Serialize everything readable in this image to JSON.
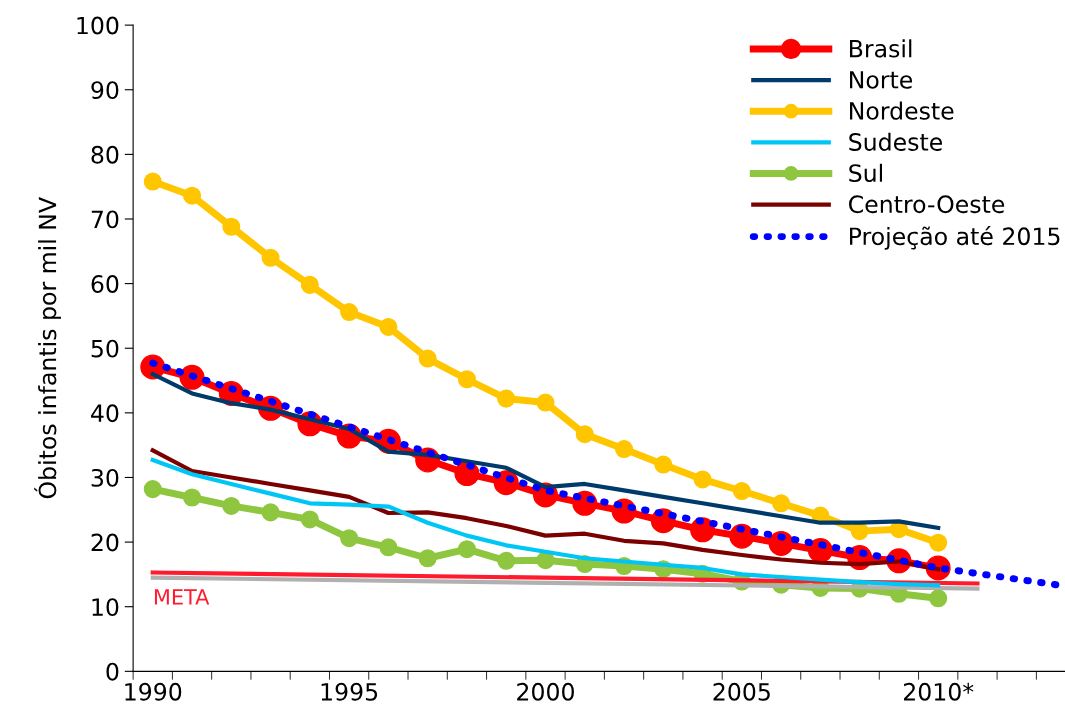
{
  "chart_data": {
    "type": "line",
    "ylabel": "Óbitos infantis por mil NV",
    "categories": [
      "1990",
      null,
      null,
      null,
      null,
      "1995",
      null,
      null,
      null,
      null,
      "2000",
      null,
      null,
      null,
      null,
      "2005",
      null,
      null,
      null,
      null,
      "2010*",
      null,
      null,
      null
    ],
    "ylim": [
      0,
      100
    ],
    "yticks": [
      0,
      10,
      20,
      30,
      40,
      50,
      60,
      70,
      80,
      90,
      100
    ],
    "grid": false,
    "legend": "top right",
    "series": [
      {
        "name": "Brasil",
        "color": "#ff0000",
        "marker": "circle",
        "values": [
          47.1,
          45.5,
          43,
          40.7,
          38.3,
          36.4,
          35.6,
          32.7,
          30.6,
          29.2,
          27.3,
          26,
          24.8,
          23.3,
          21.9,
          20.9,
          19.8,
          18.7,
          17.6,
          17.1,
          16,
          null,
          null,
          null
        ]
      },
      {
        "name": "Norte",
        "color": "#003a6b",
        "marker": "none",
        "values": [
          46,
          43,
          41.5,
          40.5,
          39,
          37.5,
          34,
          33.5,
          32.5,
          31.5,
          28.5,
          29,
          28,
          27,
          26,
          25,
          24,
          23,
          23,
          23.2,
          22.2,
          null,
          null,
          null
        ]
      },
      {
        "name": "Nordeste",
        "color": "#ffc600",
        "marker": "circle",
        "values": [
          75.8,
          73.6,
          68.8,
          64,
          59.8,
          55.6,
          53.3,
          48.4,
          45.2,
          42.2,
          41.6,
          36.7,
          34.4,
          32,
          29.7,
          27.9,
          26,
          24.1,
          21.7,
          22,
          19.9,
          null,
          null,
          null
        ]
      },
      {
        "name": "Sudeste",
        "color": "#00c6f5",
        "marker": "none",
        "values": [
          32.7,
          30.5,
          29,
          27.5,
          26,
          25.8,
          25.5,
          23,
          21,
          19.5,
          18.5,
          17.5,
          17,
          16.5,
          16,
          15,
          14.6,
          14.2,
          13.8,
          13.5,
          13.3,
          null,
          null,
          null
        ]
      },
      {
        "name": "Sul",
        "color": "#8ec63f",
        "marker": "circle",
        "values": [
          28.2,
          26.9,
          25.6,
          24.6,
          23.5,
          20.6,
          19.2,
          17.5,
          18.9,
          17.1,
          17.2,
          16.6,
          16.3,
          15.8,
          15.1,
          13.9,
          13.4,
          12.9,
          12.8,
          12,
          11.3,
          null,
          null,
          null
        ]
      },
      {
        "name": "Centro-Oeste",
        "color": "#7b0000",
        "marker": "none",
        "values": [
          34.2,
          31,
          30,
          29,
          28,
          27,
          24.5,
          24.6,
          23.7,
          22.5,
          21,
          21.3,
          20.2,
          19.8,
          18.8,
          18,
          17.3,
          16.8,
          16.6,
          17,
          15.8,
          null,
          null,
          null
        ]
      },
      {
        "name": "Projeção até 2015",
        "color": "#0000ff",
        "marker": "none",
        "line_style": "dotted",
        "values": [
          47.7,
          null,
          null,
          null,
          null,
          null,
          null,
          null,
          null,
          null,
          28,
          null,
          null,
          null,
          null,
          null,
          null,
          null,
          null,
          null,
          16,
          null,
          null,
          13.4
        ]
      },
      {
        "color": "#b0b0b0",
        "marker": "none",
        "values": [
          14.5,
          null,
          null,
          null,
          null,
          null,
          null,
          null,
          null,
          null,
          null,
          null,
          null,
          null,
          null,
          null,
          null,
          null,
          null,
          null,
          null,
          12.8,
          null,
          null
        ]
      },
      {
        "color": "#ff1a2e",
        "marker": "none",
        "values": [
          15.3,
          null,
          null,
          null,
          null,
          null,
          null,
          null,
          null,
          null,
          null,
          null,
          null,
          null,
          null,
          null,
          null,
          null,
          null,
          null,
          null,
          13.6,
          null,
          null
        ]
      }
    ],
    "annotations": [
      "META"
    ]
  }
}
